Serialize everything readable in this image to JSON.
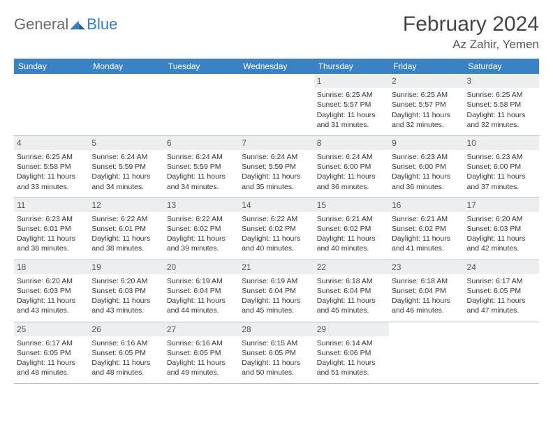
{
  "logo": {
    "general": "General",
    "blue": "Blue"
  },
  "title": "February 2024",
  "location": "Az Zahir, Yemen",
  "colors": {
    "header_bg": "#3a82c4",
    "header_fg": "#ffffff",
    "daynum_bg": "#eceef0",
    "text": "#333333",
    "logo_gray": "#6a6a6a",
    "logo_blue": "#3a7ebf"
  },
  "day_headers": [
    "Sunday",
    "Monday",
    "Tuesday",
    "Wednesday",
    "Thursday",
    "Friday",
    "Saturday"
  ],
  "weeks": [
    [
      null,
      null,
      null,
      null,
      {
        "n": "1",
        "sr": "6:25 AM",
        "ss": "5:57 PM",
        "dl": "11 hours and 31 minutes."
      },
      {
        "n": "2",
        "sr": "6:25 AM",
        "ss": "5:57 PM",
        "dl": "11 hours and 32 minutes."
      },
      {
        "n": "3",
        "sr": "6:25 AM",
        "ss": "5:58 PM",
        "dl": "11 hours and 32 minutes."
      }
    ],
    [
      {
        "n": "4",
        "sr": "6:25 AM",
        "ss": "5:58 PM",
        "dl": "11 hours and 33 minutes."
      },
      {
        "n": "5",
        "sr": "6:24 AM",
        "ss": "5:59 PM",
        "dl": "11 hours and 34 minutes."
      },
      {
        "n": "6",
        "sr": "6:24 AM",
        "ss": "5:59 PM",
        "dl": "11 hours and 34 minutes."
      },
      {
        "n": "7",
        "sr": "6:24 AM",
        "ss": "5:59 PM",
        "dl": "11 hours and 35 minutes."
      },
      {
        "n": "8",
        "sr": "6:24 AM",
        "ss": "6:00 PM",
        "dl": "11 hours and 36 minutes."
      },
      {
        "n": "9",
        "sr": "6:23 AM",
        "ss": "6:00 PM",
        "dl": "11 hours and 36 minutes."
      },
      {
        "n": "10",
        "sr": "6:23 AM",
        "ss": "6:00 PM",
        "dl": "11 hours and 37 minutes."
      }
    ],
    [
      {
        "n": "11",
        "sr": "6:23 AM",
        "ss": "6:01 PM",
        "dl": "11 hours and 38 minutes."
      },
      {
        "n": "12",
        "sr": "6:22 AM",
        "ss": "6:01 PM",
        "dl": "11 hours and 38 minutes."
      },
      {
        "n": "13",
        "sr": "6:22 AM",
        "ss": "6:02 PM",
        "dl": "11 hours and 39 minutes."
      },
      {
        "n": "14",
        "sr": "6:22 AM",
        "ss": "6:02 PM",
        "dl": "11 hours and 40 minutes."
      },
      {
        "n": "15",
        "sr": "6:21 AM",
        "ss": "6:02 PM",
        "dl": "11 hours and 40 minutes."
      },
      {
        "n": "16",
        "sr": "6:21 AM",
        "ss": "6:02 PM",
        "dl": "11 hours and 41 minutes."
      },
      {
        "n": "17",
        "sr": "6:20 AM",
        "ss": "6:03 PM",
        "dl": "11 hours and 42 minutes."
      }
    ],
    [
      {
        "n": "18",
        "sr": "6:20 AM",
        "ss": "6:03 PM",
        "dl": "11 hours and 43 minutes."
      },
      {
        "n": "19",
        "sr": "6:20 AM",
        "ss": "6:03 PM",
        "dl": "11 hours and 43 minutes."
      },
      {
        "n": "20",
        "sr": "6:19 AM",
        "ss": "6:04 PM",
        "dl": "11 hours and 44 minutes."
      },
      {
        "n": "21",
        "sr": "6:19 AM",
        "ss": "6:04 PM",
        "dl": "11 hours and 45 minutes."
      },
      {
        "n": "22",
        "sr": "6:18 AM",
        "ss": "6:04 PM",
        "dl": "11 hours and 45 minutes."
      },
      {
        "n": "23",
        "sr": "6:18 AM",
        "ss": "6:04 PM",
        "dl": "11 hours and 46 minutes."
      },
      {
        "n": "24",
        "sr": "6:17 AM",
        "ss": "6:05 PM",
        "dl": "11 hours and 47 minutes."
      }
    ],
    [
      {
        "n": "25",
        "sr": "6:17 AM",
        "ss": "6:05 PM",
        "dl": "11 hours and 48 minutes."
      },
      {
        "n": "26",
        "sr": "6:16 AM",
        "ss": "6:05 PM",
        "dl": "11 hours and 48 minutes."
      },
      {
        "n": "27",
        "sr": "6:16 AM",
        "ss": "6:05 PM",
        "dl": "11 hours and 49 minutes."
      },
      {
        "n": "28",
        "sr": "6:15 AM",
        "ss": "6:05 PM",
        "dl": "11 hours and 50 minutes."
      },
      {
        "n": "29",
        "sr": "6:14 AM",
        "ss": "6:06 PM",
        "dl": "11 hours and 51 minutes."
      },
      null,
      null
    ]
  ],
  "labels": {
    "sunrise": "Sunrise:",
    "sunset": "Sunset:",
    "daylight": "Daylight:"
  }
}
